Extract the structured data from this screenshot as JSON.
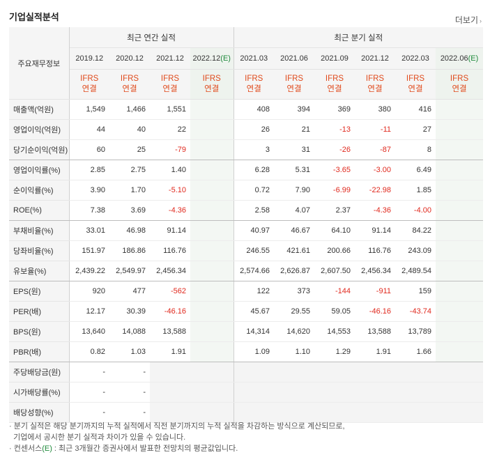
{
  "title": "기업실적분석",
  "more_label": "더보기",
  "corner_label": "주요재무정보",
  "groups": {
    "annual": "최근 연간 실적",
    "quarterly": "최근 분기 실적"
  },
  "est_mark": "(E)",
  "annual_years": [
    "2019.12",
    "2020.12",
    "2021.12",
    "2022.12"
  ],
  "quarter_years": [
    "2021.03",
    "2021.06",
    "2021.09",
    "2021.12",
    "2022.03",
    "2022.06"
  ],
  "ifrs_top": "IFRS",
  "ifrs_bottom": "연결",
  "rows": [
    {
      "label": "매출액(억원)",
      "annual": [
        "1,549",
        "1,466",
        "1,551",
        ""
      ],
      "quarterly": [
        "408",
        "394",
        "369",
        "380",
        "416",
        ""
      ]
    },
    {
      "label": "영업이익(억원)",
      "annual": [
        "44",
        "40",
        "22",
        ""
      ],
      "quarterly": [
        "26",
        "21",
        "-13",
        "-11",
        "27",
        ""
      ]
    },
    {
      "label": "당기순이익(억원)",
      "annual": [
        "60",
        "25",
        "-79",
        ""
      ],
      "quarterly": [
        "3",
        "31",
        "-26",
        "-87",
        "8",
        ""
      ]
    },
    {
      "label": "영업이익률(%)",
      "annual": [
        "2.85",
        "2.75",
        "1.40",
        ""
      ],
      "quarterly": [
        "6.28",
        "5.31",
        "-3.65",
        "-3.00",
        "6.49",
        ""
      ]
    },
    {
      "label": "순이익률(%)",
      "annual": [
        "3.90",
        "1.70",
        "-5.10",
        ""
      ],
      "quarterly": [
        "0.72",
        "7.90",
        "-6.99",
        "-22.98",
        "1.85",
        ""
      ]
    },
    {
      "label": "ROE(%)",
      "annual": [
        "7.38",
        "3.69",
        "-4.36",
        ""
      ],
      "quarterly": [
        "2.58",
        "4.07",
        "2.37",
        "-4.36",
        "-4.00",
        ""
      ]
    },
    {
      "label": "부채비율(%)",
      "annual": [
        "33.01",
        "46.98",
        "91.14",
        ""
      ],
      "quarterly": [
        "40.97",
        "46.67",
        "64.10",
        "91.14",
        "84.22",
        ""
      ]
    },
    {
      "label": "당좌비율(%)",
      "annual": [
        "151.97",
        "186.86",
        "116.76",
        ""
      ],
      "quarterly": [
        "246.55",
        "421.61",
        "200.66",
        "116.76",
        "243.09",
        ""
      ]
    },
    {
      "label": "유보율(%)",
      "annual": [
        "2,439.22",
        "2,549.97",
        "2,456.34",
        ""
      ],
      "quarterly": [
        "2,574.66",
        "2,626.87",
        "2,607.50",
        "2,456.34",
        "2,489.54",
        ""
      ]
    },
    {
      "label": "EPS(원)",
      "annual": [
        "920",
        "477",
        "-562",
        ""
      ],
      "quarterly": [
        "122",
        "373",
        "-144",
        "-911",
        "159",
        ""
      ]
    },
    {
      "label": "PER(배)",
      "annual": [
        "12.17",
        "30.39",
        "-46.16",
        ""
      ],
      "quarterly": [
        "45.67",
        "29.55",
        "59.05",
        "-46.16",
        "-43.74",
        ""
      ]
    },
    {
      "label": "BPS(원)",
      "annual": [
        "13,640",
        "14,088",
        "13,588",
        ""
      ],
      "quarterly": [
        "14,314",
        "14,620",
        "14,553",
        "13,588",
        "13,789",
        ""
      ]
    },
    {
      "label": "PBR(배)",
      "annual": [
        "0.82",
        "1.03",
        "1.91",
        ""
      ],
      "quarterly": [
        "1.09",
        "1.10",
        "1.29",
        "1.91",
        "1.66",
        ""
      ]
    },
    {
      "label": "주당배당금(원)",
      "annual": [
        "-",
        "-",
        "",
        ""
      ],
      "quarterly": [
        "",
        "",
        "",
        "",
        "",
        ""
      ]
    },
    {
      "label": "시가배당률(%)",
      "annual": [
        "-",
        "-",
        "",
        ""
      ],
      "quarterly": [
        "",
        "",
        "",
        "",
        "",
        ""
      ]
    },
    {
      "label": "배당성향(%)",
      "annual": [
        "-",
        "-",
        "",
        ""
      ],
      "quarterly": [
        "",
        "",
        "",
        "",
        "",
        ""
      ]
    }
  ],
  "notes": {
    "line1": "· 분기 실적은 해당 분기까지의 누적 실적에서 직전 분기까지의 누적 실적을 차감하는 방식으로 계산되므로,",
    "line2": "  기업에서 공시한 분기 실적과 차이가 있을 수 있습니다.",
    "line3_prefix": "· 컨센서스",
    "line3_mark": "(E)",
    "line3_rest": " : 최근 3개월간 증권사에서 발표한 전망치의 평균값입니다."
  },
  "colors": {
    "ifrs": "#e04a1c",
    "negative": "#e0291e",
    "estimate": "#1f8a3b"
  }
}
